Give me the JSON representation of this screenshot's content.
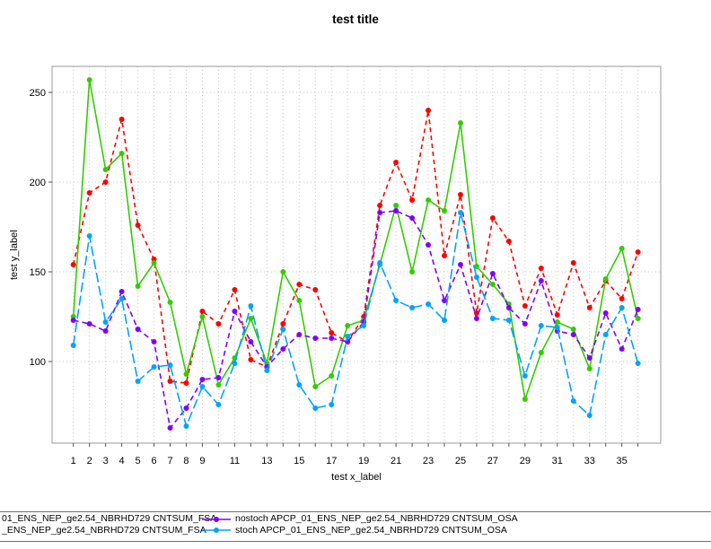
{
  "chart_data": {
    "type": "line",
    "title": "test title",
    "xlabel": "test x_label",
    "ylabel": "test y_label",
    "x": [
      1,
      2,
      3,
      4,
      5,
      6,
      7,
      8,
      9,
      10,
      11,
      12,
      13,
      14,
      15,
      16,
      17,
      18,
      19,
      20,
      21,
      22,
      23,
      24,
      25,
      26,
      27,
      28,
      29,
      30,
      31,
      32,
      33,
      34,
      35,
      36
    ],
    "x_tick_labels": [
      "1",
      "2",
      "3",
      "4",
      "5",
      "6",
      "7",
      "8",
      "9",
      "11",
      "13",
      "15",
      "17",
      "19",
      "21",
      "23",
      "25",
      "27",
      "29",
      "31",
      "33",
      "35"
    ],
    "x_ticks_labeled_at": [
      1,
      2,
      3,
      4,
      5,
      6,
      7,
      8,
      9,
      11,
      13,
      15,
      17,
      19,
      21,
      23,
      25,
      27,
      29,
      31,
      33,
      35
    ],
    "y_ticks": [
      100,
      150,
      200,
      250
    ],
    "xlim": [
      1,
      36
    ],
    "ylim": [
      55,
      264
    ],
    "grid": true,
    "legend_position": "bottom",
    "series": [
      {
        "name": "01_ENS_NEP_ge2.54_NBRHD729 CNTSUM_FSA",
        "color": "#FF0000",
        "dash": "5,4",
        "values": [
          154,
          194,
          200,
          235,
          176,
          157,
          89,
          88,
          128,
          121,
          140,
          101,
          97,
          121,
          143,
          140,
          116,
          111,
          125,
          187,
          211,
          190,
          240,
          159,
          193,
          127,
          180,
          167,
          131,
          152,
          126,
          155,
          130,
          145,
          135,
          161
        ]
      },
      {
        "name": "_ENS_NEP_ge2.54_NBRHD729 CNTSUM_FSA",
        "color": "#33CC00",
        "dash": "",
        "values": [
          125,
          257,
          207,
          216,
          142,
          155,
          133,
          93,
          125,
          87,
          102,
          124,
          99,
          150,
          134,
          86,
          92,
          120,
          123,
          154,
          187,
          150,
          190,
          184,
          233,
          153,
          143,
          132,
          79,
          105,
          122,
          118,
          96,
          146,
          163,
          124
        ]
      },
      {
        "name": "nostoch APCP_01_ENS_NEP_ge2.54_NBRHD729 CNTSUM_OSA",
        "color": "#8000FF",
        "dash": "6,4",
        "values": [
          123,
          121,
          117,
          139,
          118,
          111,
          63,
          74,
          90,
          91,
          128,
          111,
          97,
          107,
          115,
          113,
          113,
          111,
          122,
          183,
          184,
          180,
          165,
          134,
          154,
          124,
          149,
          130,
          121,
          145,
          117,
          115,
          102,
          127,
          107,
          129
        ]
      },
      {
        "name": "stoch APCP_01_ENS_NEP_ge2.54_NBRHD729 CNTSUM_OSA",
        "color": "#00A3FF",
        "dash": "11,4",
        "values": [
          109,
          170,
          122,
          135,
          89,
          97,
          98,
          64,
          86,
          76,
          99,
          131,
          95,
          118,
          87,
          74,
          76,
          114,
          120,
          155,
          134,
          130,
          132,
          123,
          183,
          147,
          124,
          123,
          92,
          120,
          119,
          78,
          70,
          115,
          130,
          99
        ]
      }
    ]
  },
  "legend": {
    "left_column": [
      {
        "label": "01_ENS_NEP_ge2.54_NBRHD729 CNTSUM_FSA"
      },
      {
        "label": "_ENS_NEP_ge2.54_NBRHD729 CNTSUM_FSA"
      }
    ],
    "right_column": [
      {
        "label": "nostoch APCP_01_ENS_NEP_ge2.54_NBRHD729 CNTSUM_OSA",
        "color": "#8000FF"
      },
      {
        "label": "stoch APCP_01_ENS_NEP_ge2.54_NBRHD729 CNTSUM_OSA",
        "color": "#00A3FF"
      }
    ]
  }
}
